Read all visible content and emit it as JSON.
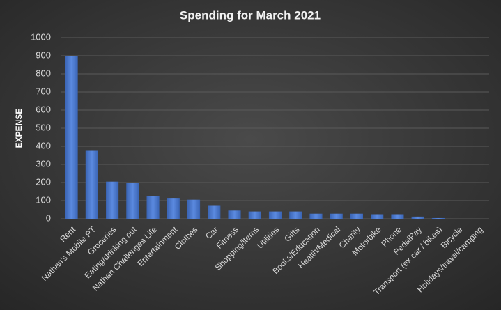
{
  "chart_data": {
    "type": "bar",
    "title": "Spending  for March  2021",
    "y_label": "EXPENSE",
    "categories": [
      "Rent",
      "Nathan's Mobile PT",
      "Groceries",
      "Eating/drinking out",
      "Nathan Challenges Life",
      "Entertainment",
      "Clothes",
      "Car",
      "Fitness",
      "Shopping/items",
      "Utilities",
      "Gifts",
      "Books/Education",
      "Health/Medical",
      "Charity",
      "Motorbike",
      "Phone",
      "PedalPay",
      "Transport (ex car / bikes)",
      "Bicycle",
      "Holidays/travel/camping"
    ],
    "values": [
      900,
      375,
      205,
      200,
      125,
      115,
      105,
      75,
      45,
      40,
      40,
      40,
      28,
      28,
      28,
      25,
      25,
      12,
      4,
      0,
      0
    ],
    "color": "#4472c4",
    "ylim": [
      0,
      1000
    ],
    "yticks": [
      0,
      100,
      200,
      300,
      400,
      500,
      600,
      700,
      800,
      900,
      1000
    ],
    "grid": true
  }
}
